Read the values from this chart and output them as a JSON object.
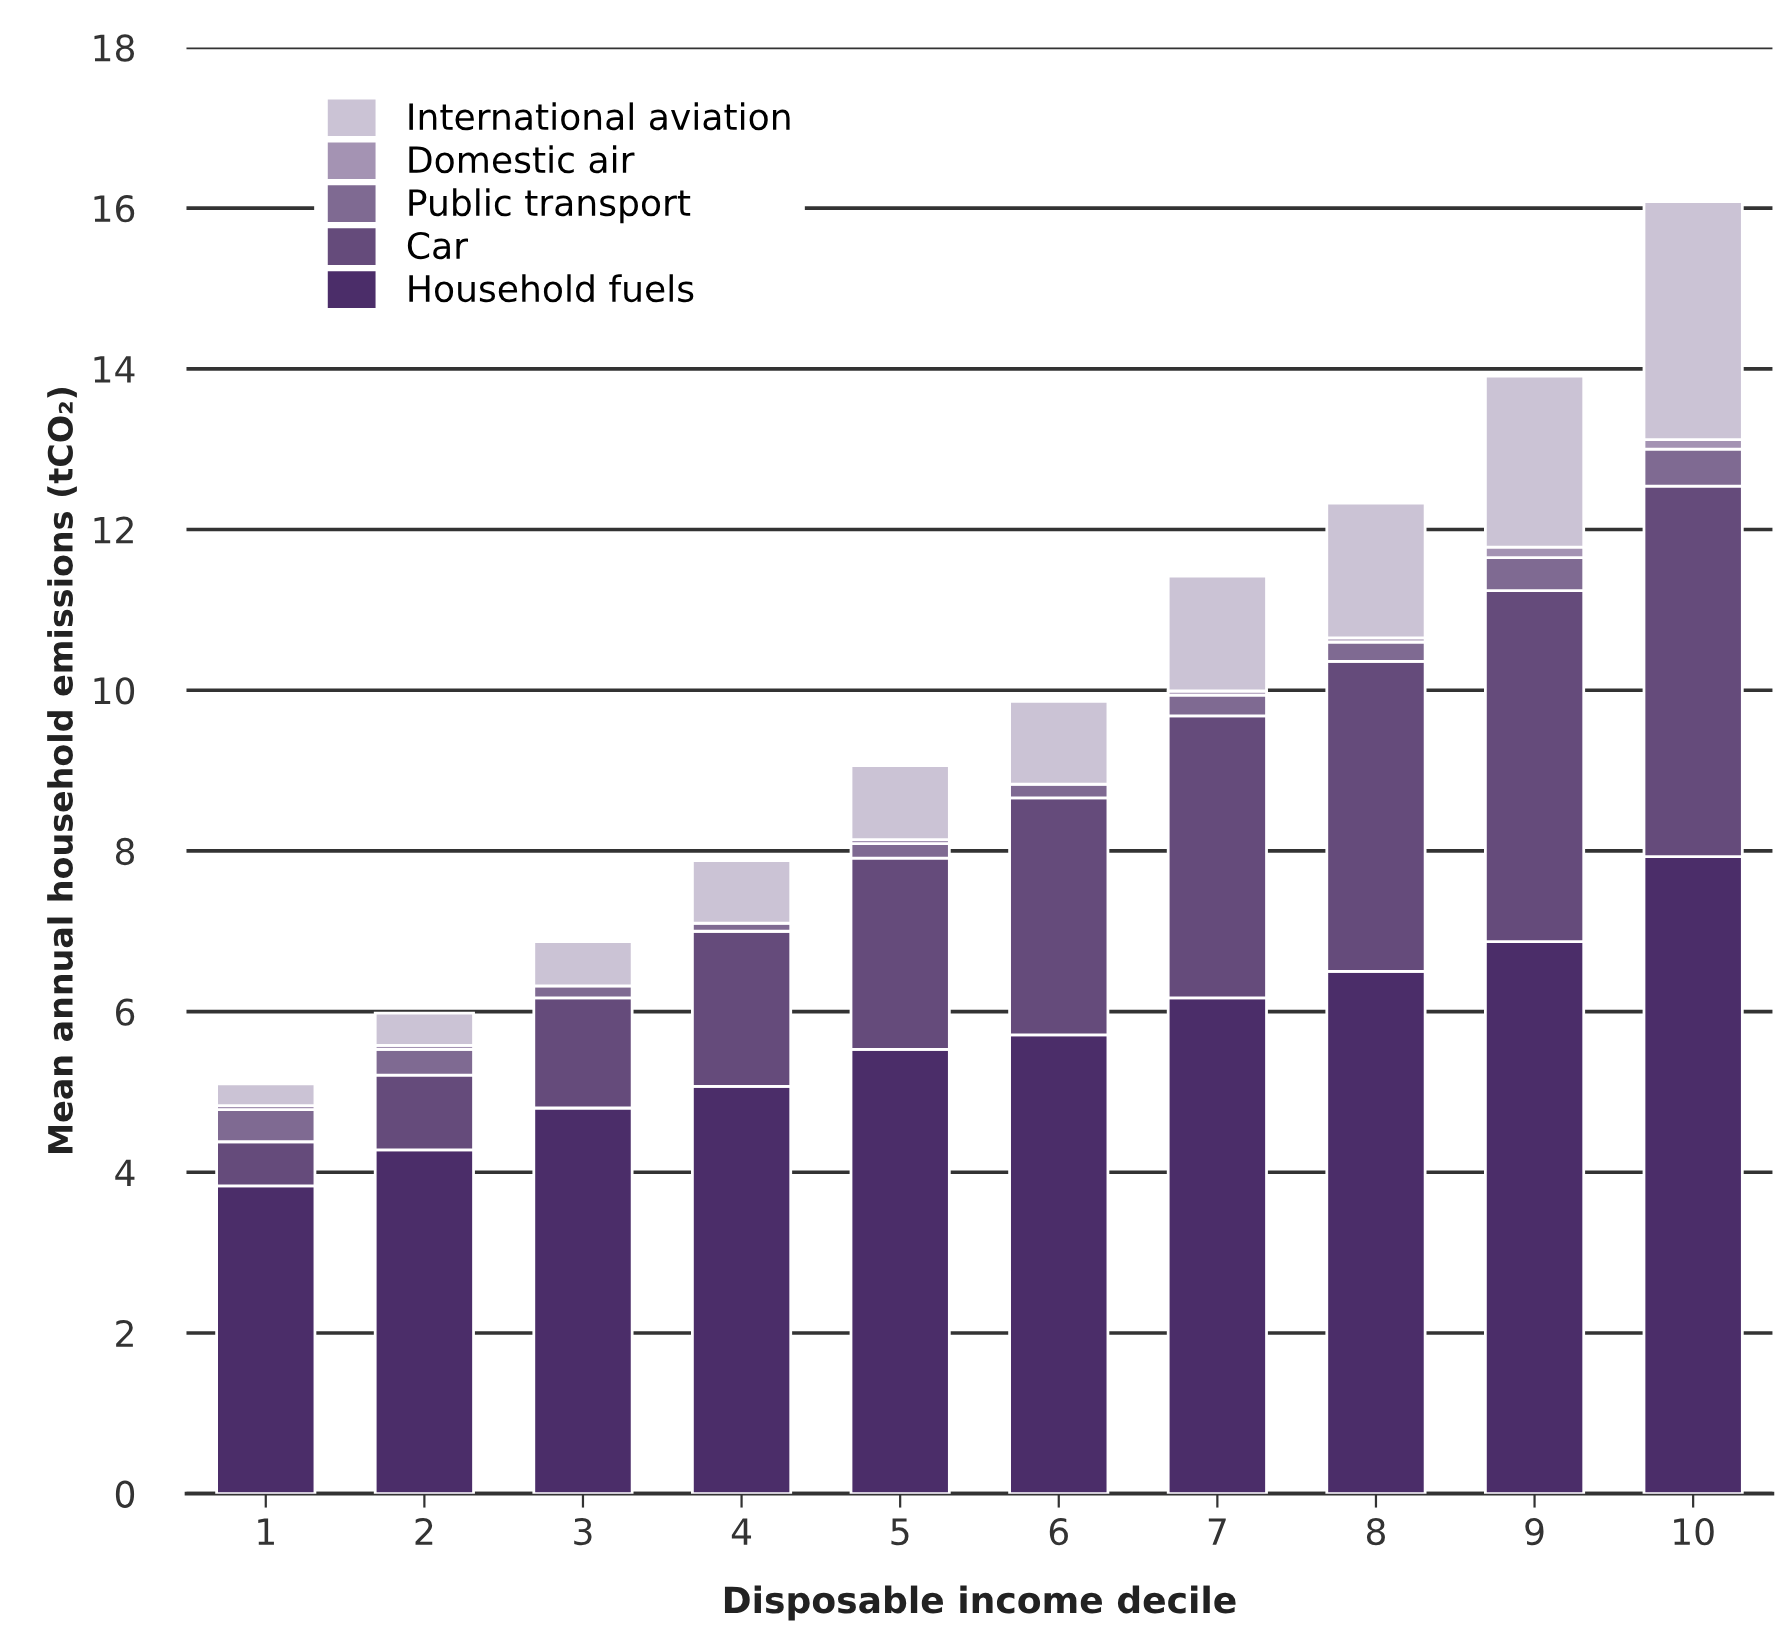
{
  "chart_data": {
    "type": "bar",
    "stacked": true,
    "xlabel": "Disposable income decile",
    "ylabel": "Mean annual household emissions (tCO₂)",
    "categories": [
      "1",
      "2",
      "3",
      "4",
      "5",
      "6",
      "7",
      "8",
      "9",
      "10"
    ],
    "series": [
      {
        "name": "Household fuels",
        "color": "#4b2d69",
        "values": [
          3.83,
          4.28,
          4.8,
          5.07,
          5.53,
          5.71,
          6.17,
          6.5,
          6.87,
          7.93
        ]
      },
      {
        "name": "Car",
        "color": "#654b7b",
        "values": [
          0.55,
          0.93,
          1.37,
          1.93,
          2.38,
          2.95,
          3.51,
          3.86,
          4.37,
          4.61
        ]
      },
      {
        "name": "Public transport",
        "color": "#7f6a92",
        "values": [
          0.4,
          0.32,
          0.15,
          0.1,
          0.18,
          0.17,
          0.26,
          0.24,
          0.41,
          0.46
        ]
      },
      {
        "name": "Domestic air",
        "color": "#a493b3",
        "values": [
          0.05,
          0.05,
          null,
          null,
          0.05,
          null,
          0.05,
          0.05,
          0.13,
          0.12
        ]
      },
      {
        "name": "International aviation",
        "color": "#cbc3d5",
        "values": [
          0.27,
          0.4,
          0.55,
          0.78,
          0.92,
          1.03,
          1.43,
          1.68,
          2.13,
          2.96
        ]
      }
    ],
    "ylim": [
      0,
      18
    ],
    "yticks": [
      0,
      2,
      4,
      6,
      8,
      10,
      12,
      14,
      16,
      18
    ],
    "grid": "y",
    "legend": "top left"
  }
}
